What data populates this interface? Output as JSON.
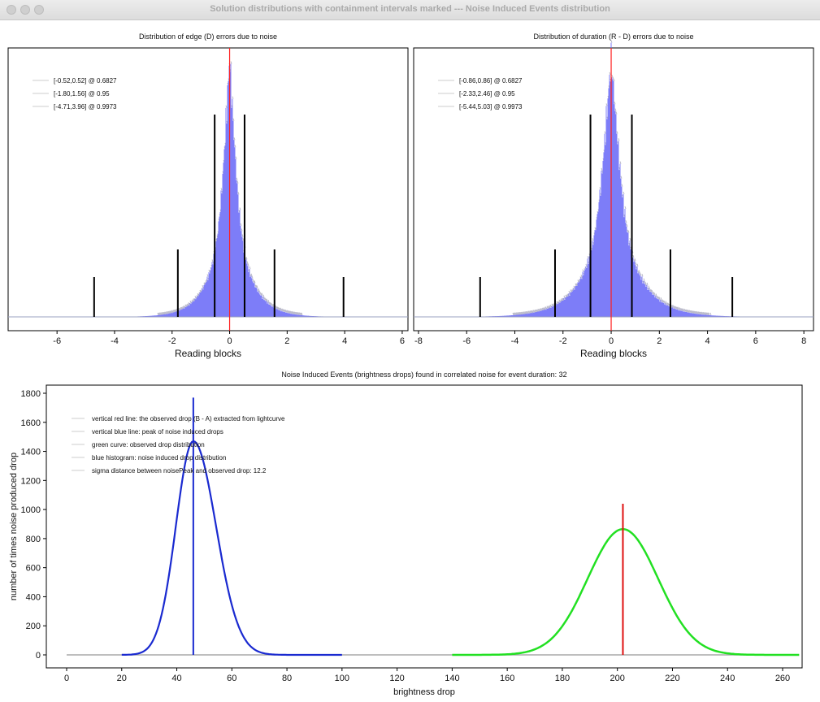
{
  "window": {
    "title": "Solution distributions with containment intervals marked --- Noise Induced Events distribution"
  },
  "colors": {
    "hist": "#6f6ff8",
    "median": "#ff2020",
    "interval": "#000000",
    "blue": "#1a2ad0",
    "green": "#22e022",
    "red": "#e01010"
  },
  "chart_data": [
    {
      "type": "bar",
      "title": "Distribution of edge (D) errors due to noise",
      "xlabel": "Reading blocks",
      "xlim": [
        -7.7,
        6.2
      ],
      "xticks": [
        "-6",
        "-4",
        "-2",
        "0",
        "2",
        "4",
        "6"
      ],
      "xtick_values": [
        -6,
        -4,
        -2,
        0,
        2,
        4,
        6
      ],
      "distribution": {
        "shape": "laplace-like",
        "center": 0,
        "scale": 0.55
      },
      "median": 0,
      "intervals": [
        {
          "lo": -0.52,
          "hi": 0.52,
          "p": 0.6827,
          "label": "[-0.52,0.52] @ 0.6827"
        },
        {
          "lo": -1.8,
          "hi": 1.56,
          "p": 0.95,
          "label": "[-1.80,1.56] @ 0.95"
        },
        {
          "lo": -4.71,
          "hi": 3.96,
          "p": 0.9973,
          "label": "[-4.71,3.96] @ 0.9973"
        }
      ]
    },
    {
      "type": "bar",
      "title": "Distribution of duration (R - D) errors due to noise",
      "xlabel": "Reading blocks",
      "xlim": [
        -8.2,
        8.4
      ],
      "xticks": [
        "-8",
        "-6",
        "-4",
        "-2",
        "0",
        "2",
        "4",
        "6",
        "8"
      ],
      "xtick_values": [
        -8,
        -6,
        -4,
        -2,
        0,
        2,
        4,
        6,
        8
      ],
      "distribution": {
        "shape": "laplace-like",
        "center": 0,
        "scale": 0.9
      },
      "median": 0,
      "intervals": [
        {
          "lo": -0.86,
          "hi": 0.86,
          "p": 0.6827,
          "label": "[-0.86,0.86] @ 0.6827"
        },
        {
          "lo": -2.33,
          "hi": 2.46,
          "p": 0.95,
          "label": "[-2.33,2.46] @ 0.95"
        },
        {
          "lo": -5.44,
          "hi": 5.03,
          "p": 0.9973,
          "label": "[-5.44,5.03] @ 0.9973"
        }
      ]
    },
    {
      "type": "line",
      "title": "Noise Induced Events (brightness drops) found in correlated noise for event duration: 32",
      "xlabel": "brightness drop",
      "ylabel": "number of times noise produced drop",
      "xlim": [
        -7,
        268
      ],
      "ylim": [
        -90,
        1850
      ],
      "xticks": [
        "0",
        "20",
        "40",
        "60",
        "80",
        "100",
        "120",
        "140",
        "160",
        "180",
        "200",
        "220",
        "240",
        "260"
      ],
      "yticks": [
        "0",
        "200",
        "400",
        "600",
        "800",
        "1000",
        "1200",
        "1400",
        "1600",
        "1800"
      ],
      "legend": [
        "vertical red line: the observed drop (B - A) extracted from lightcurve",
        "vertical blue line: peak of noise induced drops",
        "green curve: observed drop distribution",
        "blue histogram: noise induced drop distribution",
        "sigma distance between noisePeak and observed drop: 12.2"
      ],
      "series": [
        {
          "name": "blue histogram",
          "peak_x": 46,
          "peak_y": 1470,
          "sigma_left": 6.3,
          "sigma_right": 8.2,
          "x_range": [
            0,
            266
          ]
        },
        {
          "name": "green curve",
          "peak_x": 202,
          "peak_y": 865,
          "sigma": 12.8,
          "x_range": [
            140,
            266
          ]
        }
      ],
      "blue_line": {
        "x": 46,
        "top": 1770
      },
      "red_line": {
        "x": 202,
        "top": 1040
      }
    }
  ]
}
